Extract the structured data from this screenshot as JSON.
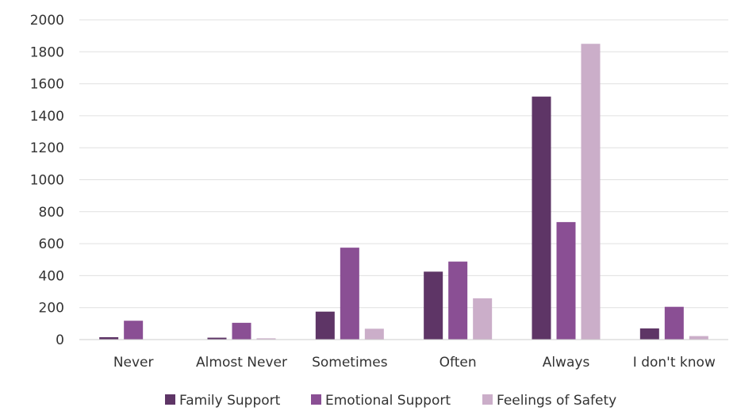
{
  "chart_data": {
    "type": "bar",
    "categories": [
      "Never",
      "Almost Never",
      "Sometimes",
      "Often",
      "Always",
      "I don't know"
    ],
    "series": [
      {
        "name": "Family Support",
        "color": "#5e3566",
        "values": [
          15,
          12,
          175,
          425,
          1520,
          70
        ]
      },
      {
        "name": "Emotional Support",
        "color": "#8a4f94",
        "values": [
          118,
          105,
          575,
          488,
          735,
          205
        ]
      },
      {
        "name": "Feelings of Safety",
        "color": "#cbaec9",
        "values": [
          0,
          8,
          68,
          258,
          1850,
          22
        ]
      }
    ],
    "ylim": [
      0,
      2000
    ],
    "yticks": [
      "0",
      "200",
      "400",
      "600",
      "800",
      "1000",
      "1200",
      "1400",
      "1600",
      "1800",
      "2000"
    ],
    "grid": true,
    "legend_position": "bottom"
  }
}
